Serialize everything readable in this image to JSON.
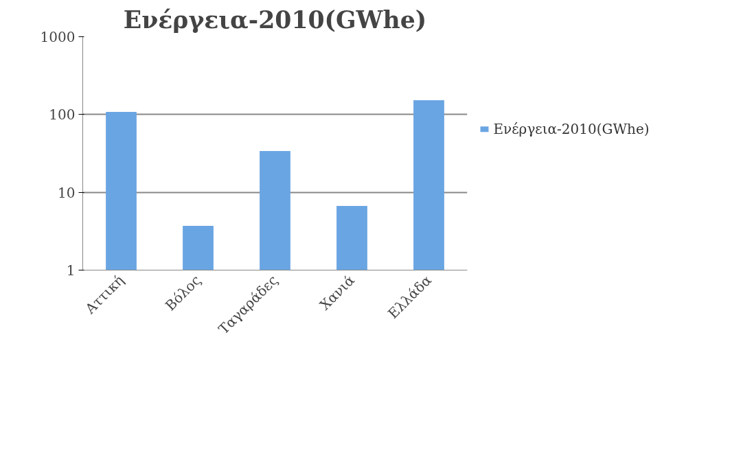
{
  "chart_data": {
    "type": "bar",
    "title": "Ενέργεια-2010(GWhe)",
    "categories": [
      "Αττική",
      "Βόλος",
      "Ταγαράδες",
      "Χανιά",
      "Ελλάδα"
    ],
    "series": [
      {
        "name": "Ενέργεια-2010(GWhe)",
        "color": "#6aa5e3",
        "values": [
          108,
          3.7,
          34,
          6.7,
          153
        ]
      }
    ],
    "log": true,
    "ylim": [
      1,
      1000
    ],
    "yticks": [
      1,
      10,
      100,
      1000
    ],
    "grid": "y",
    "legend": "right"
  }
}
